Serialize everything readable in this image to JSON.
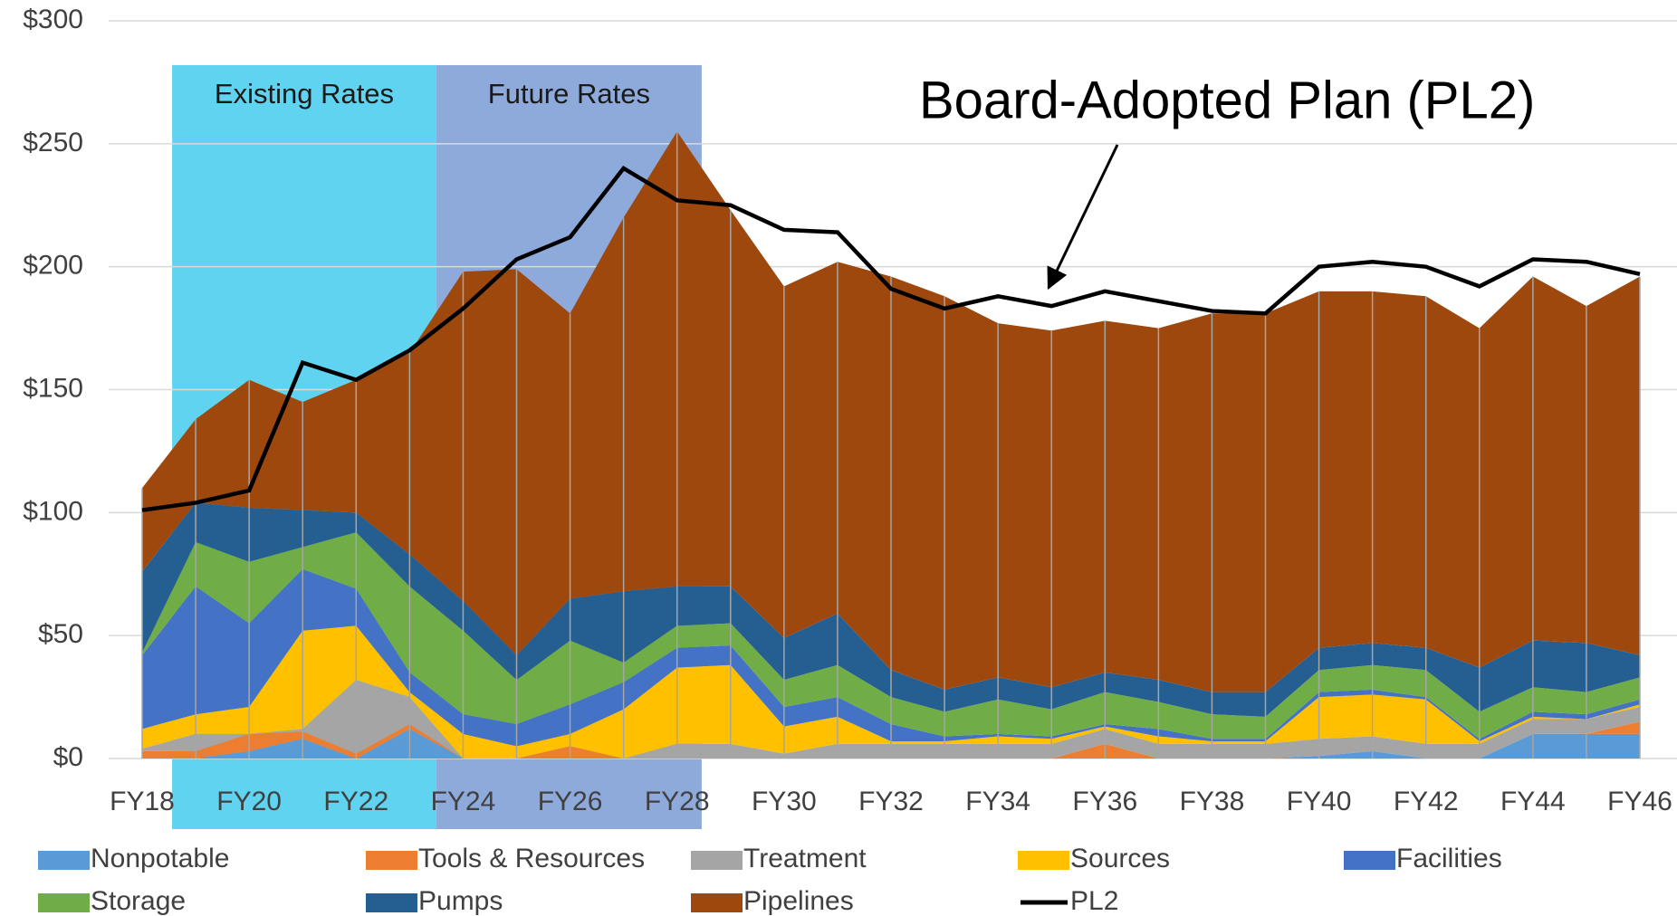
{
  "chart_data": {
    "type": "stacked_area",
    "categories": [
      "FY18",
      null,
      "FY20",
      null,
      "FY22",
      null,
      "FY24",
      null,
      "FY26",
      null,
      "FY28",
      null,
      "FY30",
      null,
      "FY32",
      null,
      "FY34",
      null,
      "FY36",
      null,
      "FY38",
      null,
      "FY40",
      null,
      "FY42",
      null,
      "FY44",
      null,
      "FY46"
    ],
    "ylim": [
      0,
      300
    ],
    "yticks": [
      {
        "value": 0,
        "label": "$0"
      },
      {
        "value": 50,
        "label": "$50"
      },
      {
        "value": 100,
        "label": "$100"
      },
      {
        "value": 150,
        "label": "$150"
      },
      {
        "value": 200,
        "label": "$200"
      },
      {
        "value": 250,
        "label": "$250"
      },
      {
        "value": 300,
        "label": "$300"
      }
    ],
    "grid": true,
    "legend": "bottom",
    "annotations": [
      "Existing Rates",
      "Future Rates",
      "Board-Adopted Plan (PL2)"
    ],
    "series": [
      {
        "name": "Nonpotable",
        "color": "#5b9bd5",
        "values": [
          0,
          0,
          3,
          8,
          0,
          12,
          0,
          0,
          0,
          0,
          0,
          0,
          0,
          0,
          0,
          0,
          0,
          0,
          0,
          0,
          0,
          0,
          1,
          3,
          0,
          0,
          10,
          10,
          10
        ]
      },
      {
        "name": "Tools & Resources",
        "color": "#ed7d31",
        "values": [
          3,
          3,
          7,
          3,
          2,
          2,
          0,
          0,
          5,
          0,
          0,
          0,
          0,
          0,
          0,
          0,
          0,
          0,
          6,
          0,
          0,
          0,
          0,
          0,
          0,
          0,
          0,
          0,
          5
        ]
      },
      {
        "name": "Treatment",
        "color": "#a5a5a5",
        "values": [
          1,
          7,
          0,
          1,
          30,
          11,
          0,
          0,
          0,
          0,
          6,
          6,
          2,
          6,
          6,
          6,
          6,
          6,
          6,
          6,
          6,
          6,
          7,
          6,
          6,
          6,
          6,
          6,
          6
        ]
      },
      {
        "name": "Sources",
        "color": "#ffc000",
        "values": [
          8,
          8,
          11,
          40,
          22,
          2,
          10,
          5,
          5,
          20,
          31,
          32,
          11,
          11,
          1,
          1,
          3,
          2,
          1,
          3,
          1,
          1,
          17,
          17,
          18,
          1,
          1,
          0,
          1
        ]
      },
      {
        "name": "Facilities",
        "color": "#4472c4",
        "values": [
          30,
          52,
          34,
          25,
          15,
          8,
          8,
          9,
          12,
          11,
          8,
          8,
          8,
          8,
          7,
          2,
          1,
          1,
          1,
          3,
          1,
          1,
          2,
          2,
          1,
          1,
          2,
          2,
          2
        ]
      },
      {
        "name": "Storage",
        "color": "#70ad47",
        "values": [
          1,
          18,
          25,
          9,
          23,
          35,
          34,
          18,
          26,
          8,
          9,
          9,
          11,
          13,
          11,
          10,
          14,
          11,
          13,
          11,
          10,
          9,
          9,
          10,
          11,
          11,
          10,
          9,
          9
        ]
      },
      {
        "name": "Pumps",
        "color": "#255e91",
        "values": [
          33,
          16,
          22,
          15,
          8,
          13,
          12,
          10,
          17,
          29,
          16,
          15,
          17,
          21,
          11,
          9,
          9,
          9,
          8,
          9,
          9,
          10,
          9,
          9,
          9,
          18,
          19,
          20,
          9
        ]
      },
      {
        "name": "Pipelines",
        "color": "#9e480e",
        "values": [
          34,
          34,
          52,
          44,
          54,
          82,
          134,
          157,
          116,
          152,
          185,
          153,
          143,
          143,
          160,
          160,
          144,
          145,
          143,
          143,
          154,
          154,
          145,
          143,
          143,
          138,
          148,
          137,
          154
        ]
      },
      {
        "name": "PL2",
        "color": "#000000",
        "type": "line",
        "values": [
          101,
          104,
          109,
          161,
          154,
          166,
          183,
          203,
          212,
          240,
          227,
          225,
          215,
          214,
          191,
          183,
          188,
          184,
          190,
          186,
          182,
          181,
          200,
          202,
          200,
          192,
          203,
          202,
          197
        ]
      }
    ]
  }
}
